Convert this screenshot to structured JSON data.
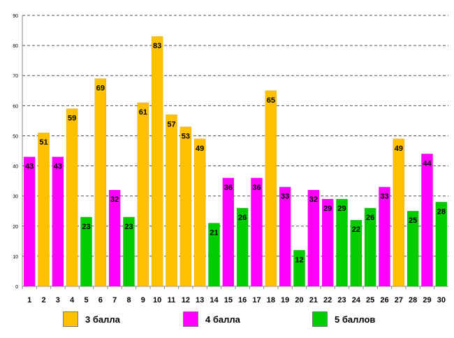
{
  "chart_data": {
    "type": "bar",
    "title": "",
    "xlabel": "",
    "ylabel": "",
    "ylim": [
      0,
      90
    ],
    "yticks": [
      "0",
      "10",
      "20",
      "30",
      "40",
      "50",
      "60",
      "70",
      "80",
      "90"
    ],
    "grid": true,
    "categories": [
      "1",
      "2",
      "3",
      "4",
      "5",
      "6",
      "7",
      "8",
      "9",
      "10",
      "11",
      "12",
      "13",
      "14",
      "15",
      "16",
      "17",
      "18",
      "19",
      "20",
      "21",
      "22",
      "23",
      "24",
      "25",
      "26",
      "27",
      "28",
      "29",
      "30"
    ],
    "values": [
      43,
      51,
      43,
      59,
      23,
      69,
      32,
      23,
      61,
      83,
      57,
      53,
      49,
      21,
      36,
      26,
      36,
      65,
      33,
      12,
      32,
      29,
      29,
      22,
      26,
      33,
      49,
      25,
      44,
      28
    ],
    "series_index": [
      1,
      0,
      1,
      0,
      2,
      0,
      1,
      2,
      0,
      0,
      0,
      0,
      0,
      2,
      1,
      2,
      1,
      0,
      1,
      2,
      1,
      1,
      2,
      2,
      2,
      1,
      0,
      2,
      1,
      2
    ],
    "legend": [
      {
        "name": "3 балла",
        "color": "#FFC000"
      },
      {
        "name": "4 балла",
        "color": "#FF00FF"
      },
      {
        "name": "5 баллов",
        "color": "#00CC00"
      }
    ]
  }
}
